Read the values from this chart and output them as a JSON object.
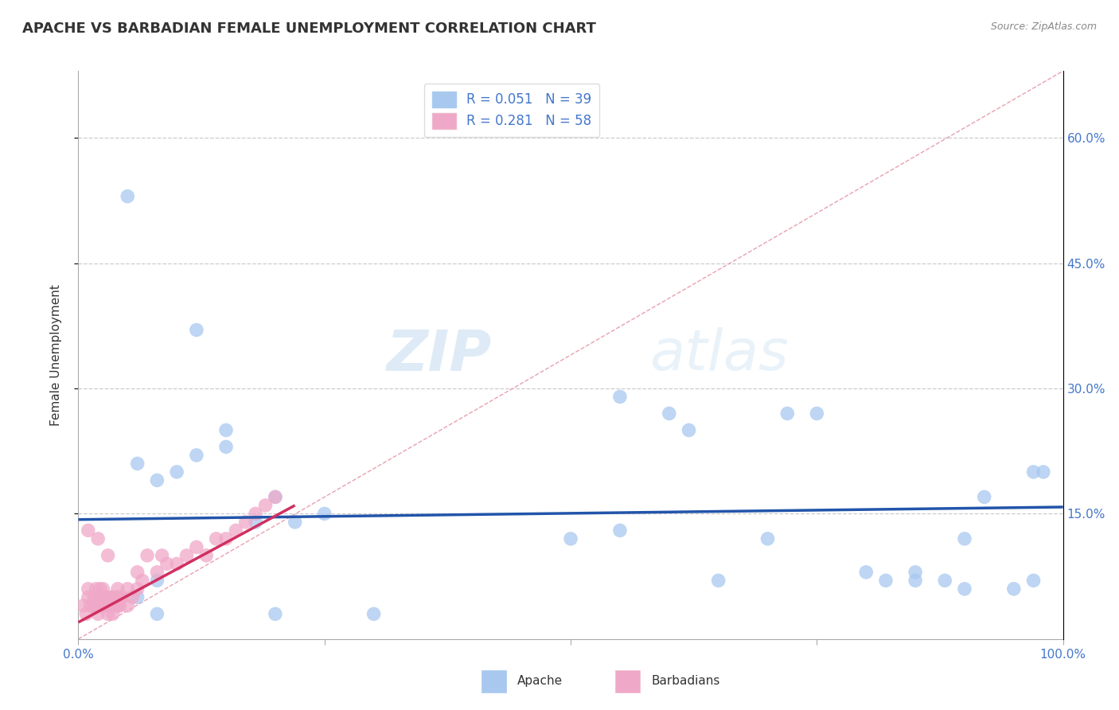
{
  "title": "APACHE VS BARBADIAN FEMALE UNEMPLOYMENT CORRELATION CHART",
  "source": "Source: ZipAtlas.com",
  "ylabel": "Female Unemployment",
  "xlim": [
    0,
    1.0
  ],
  "ylim": [
    0,
    0.68
  ],
  "ytick_positions": [
    0.15,
    0.3,
    0.45,
    0.6
  ],
  "ytick_labels": [
    "15.0%",
    "30.0%",
    "45.0%",
    "60.0%"
  ],
  "apache_color": "#a8c8f0",
  "barbadian_color": "#f0a8c8",
  "apache_line_color": "#2255aa",
  "barbadian_line_color": "#d03060",
  "diagonal_color": "#e8a0b0",
  "R_apache": "0.051",
  "N_apache": "39",
  "R_barbadian": "0.281",
  "N_barbadian": "58",
  "legend_apache_label": "R = 0.051   N = 39",
  "legend_barbadian_label": "R = 0.281   N = 58",
  "watermark_zip": "ZIP",
  "watermark_atlas": "atlas",
  "apache_scatter_x": [
    0.05,
    0.12,
    0.15,
    0.18,
    0.06,
    0.08,
    0.1,
    0.12,
    0.15,
    0.2,
    0.25,
    0.22,
    0.3,
    0.06,
    0.08,
    0.55,
    0.6,
    0.62,
    0.65,
    0.7,
    0.72,
    0.75,
    0.8,
    0.82,
    0.85,
    0.88,
    0.9,
    0.92,
    0.95,
    0.97,
    0.98,
    0.04,
    0.08,
    0.2,
    0.5,
    0.55,
    0.85,
    0.9,
    0.97
  ],
  "apache_scatter_y": [
    0.53,
    0.37,
    0.23,
    0.14,
    0.21,
    0.19,
    0.2,
    0.22,
    0.25,
    0.17,
    0.15,
    0.14,
    0.03,
    0.05,
    0.03,
    0.13,
    0.27,
    0.25,
    0.07,
    0.12,
    0.27,
    0.27,
    0.08,
    0.07,
    0.08,
    0.07,
    0.12,
    0.17,
    0.06,
    0.07,
    0.2,
    0.04,
    0.07,
    0.03,
    0.12,
    0.29,
    0.07,
    0.06,
    0.2
  ],
  "barbadian_scatter_x": [
    0.005,
    0.008,
    0.01,
    0.01,
    0.012,
    0.014,
    0.016,
    0.018,
    0.018,
    0.02,
    0.02,
    0.02,
    0.022,
    0.022,
    0.024,
    0.025,
    0.025,
    0.028,
    0.028,
    0.03,
    0.03,
    0.03,
    0.032,
    0.032,
    0.035,
    0.035,
    0.038,
    0.038,
    0.04,
    0.04,
    0.04,
    0.042,
    0.042,
    0.045,
    0.05,
    0.05,
    0.055,
    0.06,
    0.06,
    0.065,
    0.07,
    0.08,
    0.085,
    0.09,
    0.1,
    0.11,
    0.12,
    0.13,
    0.14,
    0.15,
    0.16,
    0.17,
    0.18,
    0.19,
    0.2,
    0.01,
    0.02,
    0.03
  ],
  "barbadian_scatter_y": [
    0.04,
    0.03,
    0.05,
    0.06,
    0.04,
    0.04,
    0.05,
    0.04,
    0.06,
    0.03,
    0.04,
    0.05,
    0.05,
    0.06,
    0.04,
    0.05,
    0.06,
    0.04,
    0.05,
    0.03,
    0.04,
    0.05,
    0.04,
    0.05,
    0.03,
    0.05,
    0.04,
    0.05,
    0.04,
    0.05,
    0.06,
    0.04,
    0.05,
    0.05,
    0.04,
    0.06,
    0.05,
    0.06,
    0.08,
    0.07,
    0.1,
    0.08,
    0.1,
    0.09,
    0.09,
    0.1,
    0.11,
    0.1,
    0.12,
    0.12,
    0.13,
    0.14,
    0.15,
    0.16,
    0.17,
    0.13,
    0.12,
    0.1
  ],
  "apache_trend_x": [
    0.0,
    1.0
  ],
  "apache_trend_y": [
    0.143,
    0.158
  ],
  "barbadian_trend_x": [
    0.0,
    0.22
  ],
  "barbadian_trend_y": [
    0.02,
    0.16
  ]
}
